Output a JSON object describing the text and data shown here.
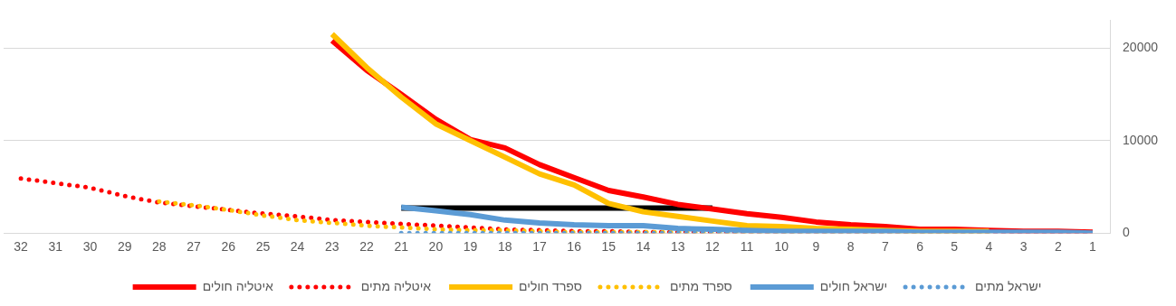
{
  "chart_data": {
    "type": "line",
    "categories": [
      "32",
      "31",
      "30",
      "29",
      "28",
      "27",
      "26",
      "25",
      "24",
      "23",
      "22",
      "21",
      "20",
      "19",
      "18",
      "17",
      "16",
      "15",
      "14",
      "13",
      "12",
      "11",
      "10",
      "9",
      "8",
      "7",
      "6",
      "5",
      "4",
      "3",
      "2",
      "1"
    ],
    "series": [
      {
        "name": "ישראל מתים",
        "color": "#5b9bd5",
        "line_style": "dotted",
        "values": [
          null,
          null,
          null,
          null,
          null,
          null,
          null,
          null,
          null,
          null,
          null,
          0,
          0,
          0,
          0,
          0,
          0,
          0,
          0,
          0,
          0,
          0,
          0,
          0,
          0,
          0,
          0,
          0,
          0,
          0,
          0,
          0
        ]
      },
      {
        "name": "ישראל חולים",
        "color": "#5b9bd5",
        "line_style": "solid",
        "values": [
          null,
          null,
          null,
          null,
          null,
          null,
          null,
          null,
          null,
          null,
          null,
          2800,
          2400,
          2000,
          1400,
          1100,
          900,
          800,
          800,
          500,
          400,
          300,
          200,
          200,
          200,
          200,
          100,
          100,
          100,
          100,
          100,
          0
        ]
      },
      {
        "name": "ספרד מתים",
        "color": "#ffc000",
        "line_style": "dotted",
        "values": [
          null,
          null,
          null,
          null,
          3400,
          3000,
          2500,
          1900,
          1400,
          1100,
          800,
          600,
          400,
          300,
          300,
          200,
          100,
          100,
          100,
          100,
          0,
          0,
          0,
          0,
          0,
          0,
          0,
          0,
          0,
          null,
          null,
          null
        ]
      },
      {
        "name": "ספרד חולים",
        "color": "#ffc000",
        "line_style": "solid",
        "values": [
          null,
          null,
          null,
          null,
          null,
          null,
          null,
          null,
          null,
          21500,
          17900,
          14700,
          11800,
          10000,
          8200,
          6400,
          5200,
          3200,
          2300,
          1800,
          1300,
          800,
          700,
          500,
          400,
          300,
          200,
          200,
          200,
          null,
          null,
          null
        ]
      },
      {
        "name": "איטליה מתים",
        "color": "#ff0000",
        "line_style": "dotted",
        "values": [
          5900,
          5400,
          4900,
          4000,
          3300,
          2900,
          2500,
          2100,
          1800,
          1400,
          1200,
          1000,
          800,
          600,
          400,
          300,
          200,
          200,
          100,
          100,
          100,
          0,
          0,
          0,
          0,
          0,
          0,
          0,
          0,
          0,
          0,
          0
        ]
      },
      {
        "name": "איטליה חולים",
        "color": "#ff0000",
        "line_style": "solid",
        "values": [
          null,
          null,
          null,
          null,
          null,
          null,
          null,
          null,
          null,
          20800,
          17600,
          15000,
          12300,
          10100,
          9200,
          7400,
          6000,
          4600,
          3900,
          3100,
          2600,
          2100,
          1700,
          1200,
          900,
          700,
          400,
          400,
          300,
          200,
          200,
          100
        ]
      },
      {
        "color": "#000000",
        "line_style": "solid",
        "values": [
          null,
          null,
          null,
          null,
          null,
          null,
          null,
          null,
          null,
          null,
          null,
          2700,
          2700,
          2700,
          2700,
          2700,
          2700,
          2700,
          2700,
          2700,
          2700,
          null,
          null,
          null,
          null,
          null,
          null,
          null,
          null,
          null,
          null,
          null
        ]
      }
    ],
    "ylim": [
      0,
      23000
    ],
    "yticks": [
      0,
      10000,
      20000
    ],
    "grid": "y",
    "legend": "bottom",
    "marker": "none"
  }
}
